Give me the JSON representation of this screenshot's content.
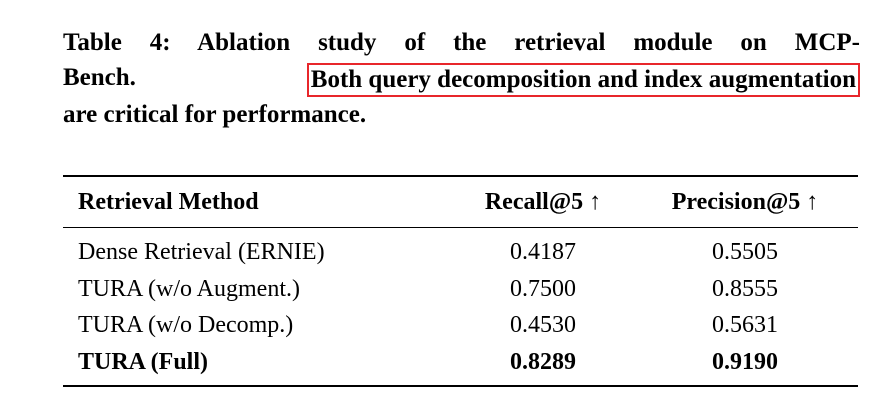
{
  "caption": {
    "line1": "Table 4: Ablation study of the retrieval module on MCP-",
    "line2": "Bench.",
    "highlight": "Both query decomposition and index augmentation",
    "line3": "are critical for performance."
  },
  "table": {
    "header": [
      "Retrieval Method",
      "Recall@5 ↑",
      "Precision@5 ↑"
    ],
    "rows": [
      [
        "Dense Retrieval (ERNIE)",
        "0.4187",
        "0.5505"
      ],
      [
        "TURA (w/o Augment.)",
        "0.7500",
        "0.8555"
      ],
      [
        "TURA (w/o Decomp.)",
        "0.4530",
        "0.5631"
      ],
      [
        "TURA (Full)",
        "0.8289",
        "0.9190"
      ]
    ],
    "bold_row": 3
  }
}
